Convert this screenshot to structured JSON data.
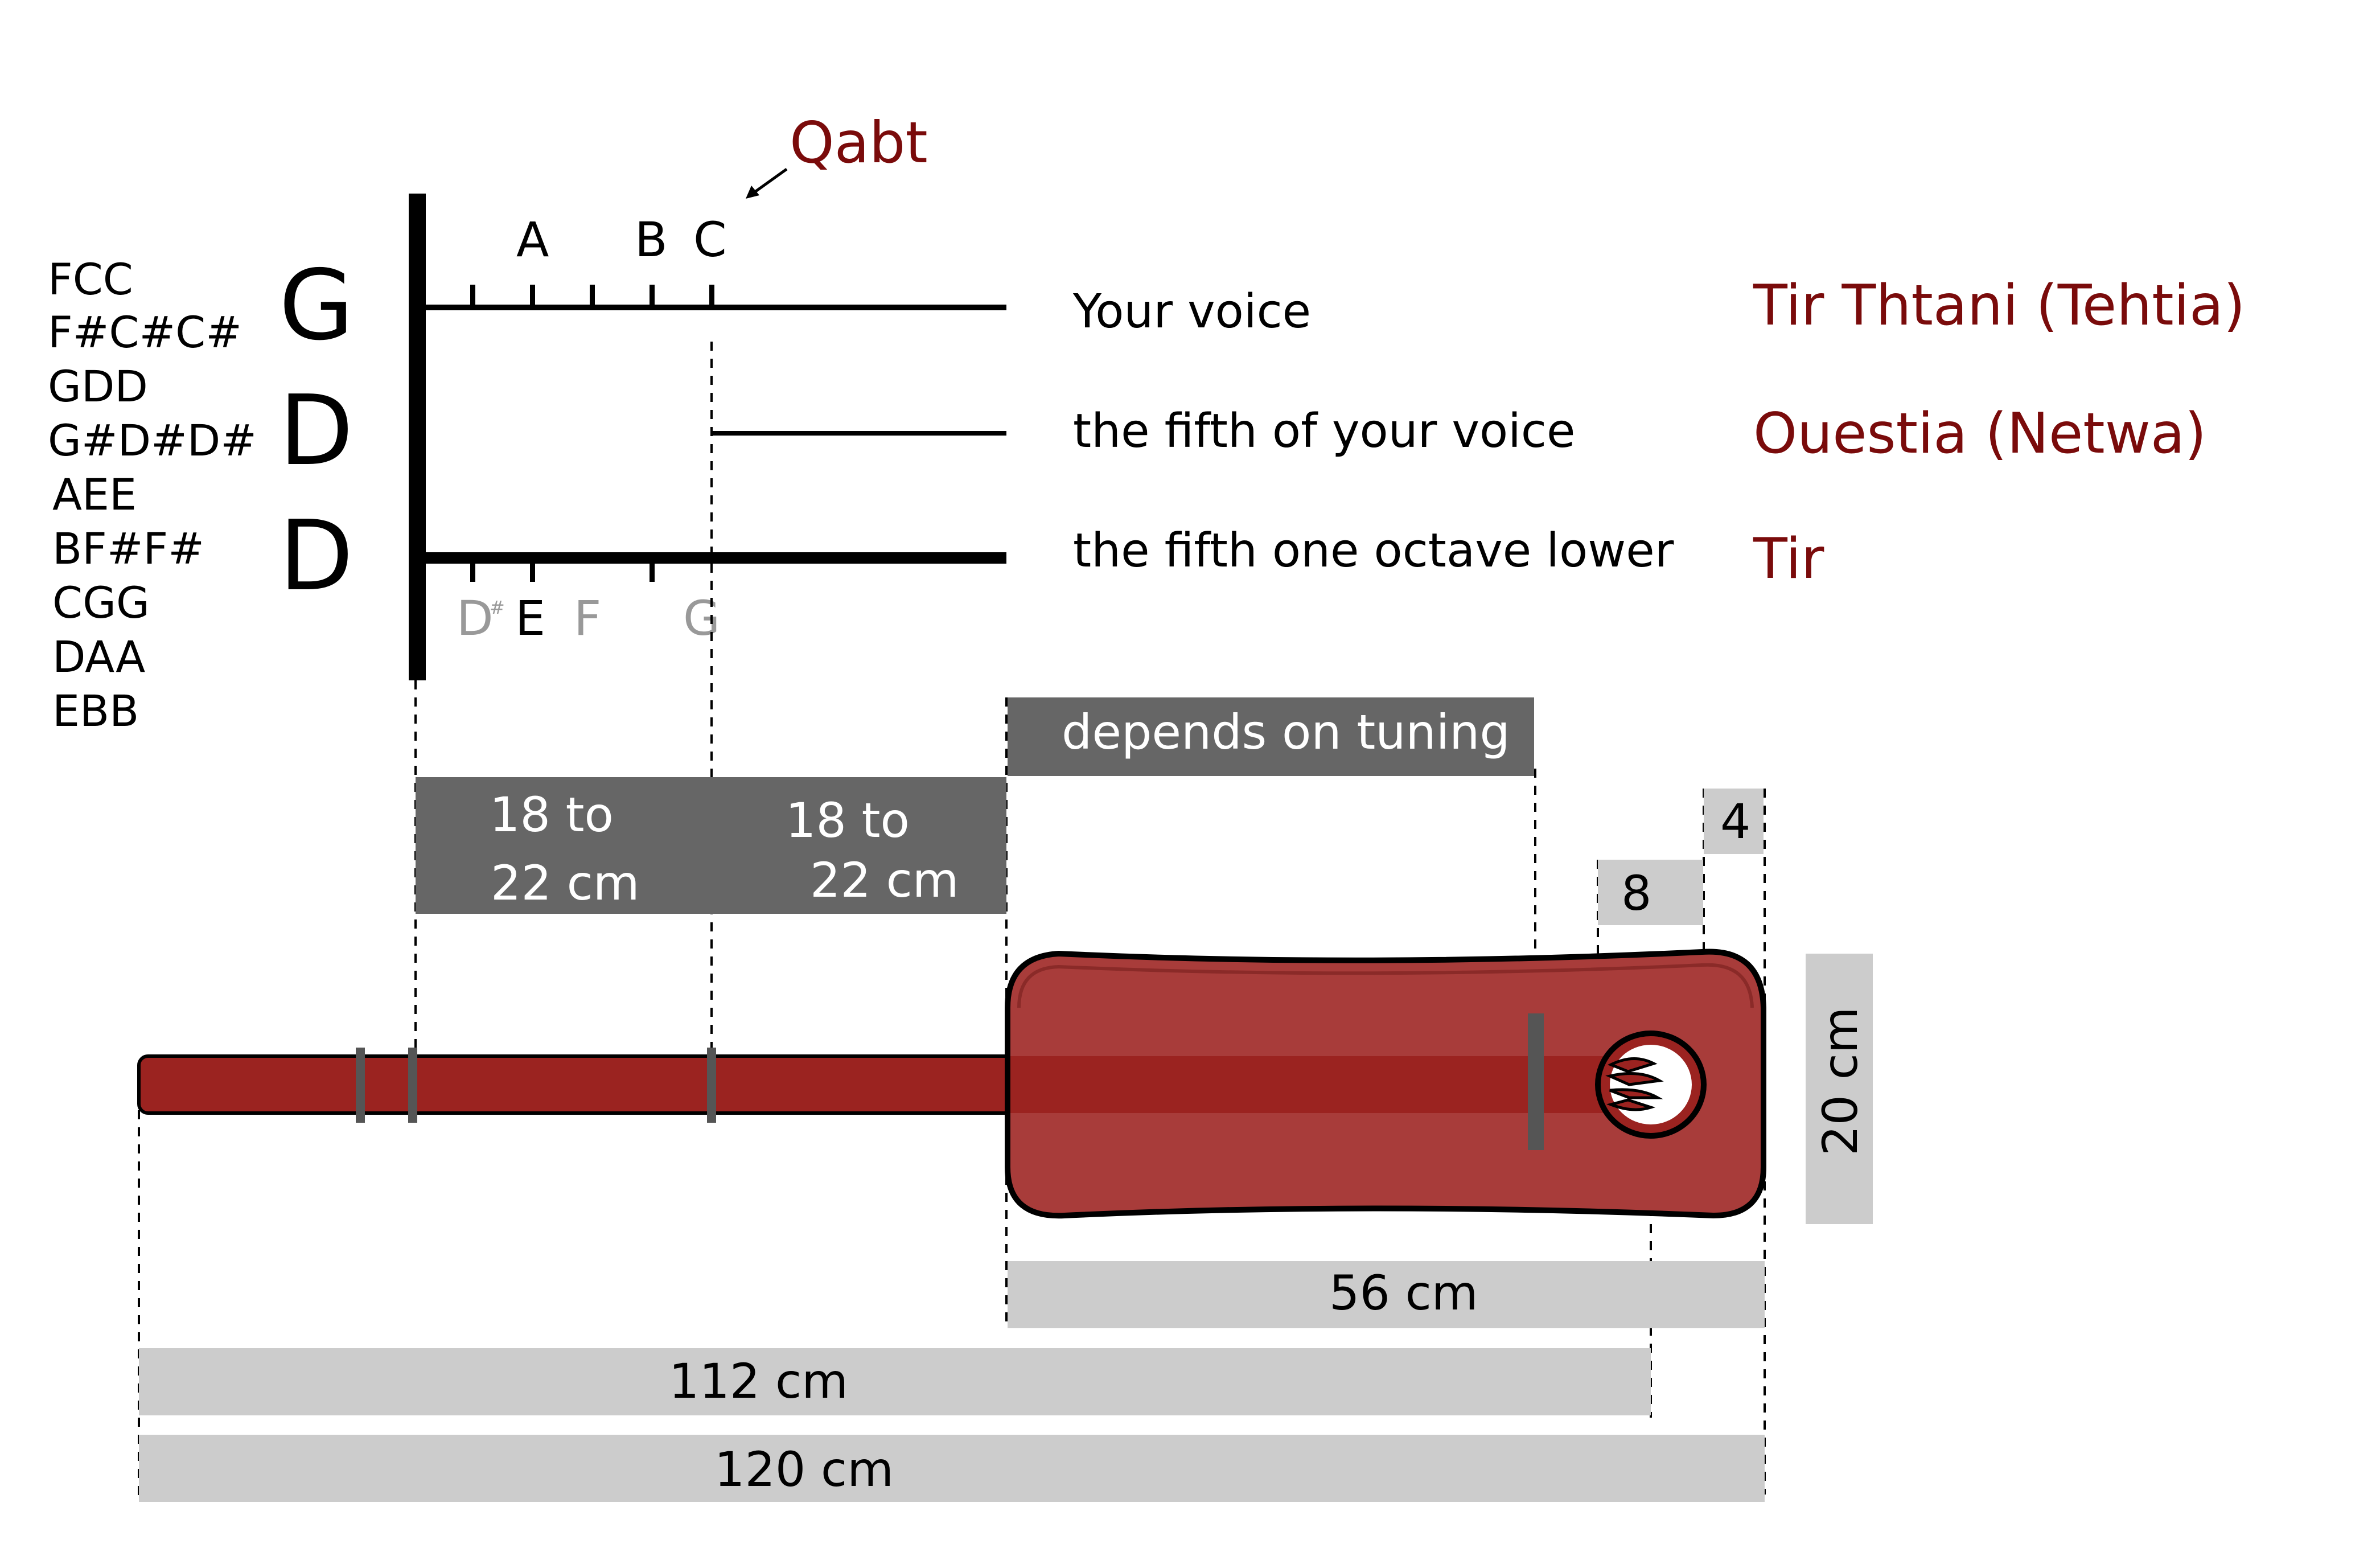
{
  "tunings": [
    "FCC",
    "F#C#C#",
    "GDD",
    "G#D#D#",
    "AEE",
    "BF#F#",
    "CGG",
    "DAA",
    "EBB"
  ],
  "string_letters": [
    "G",
    "D",
    "D"
  ],
  "qabt_label": "Qabt",
  "top_notes": [
    "A",
    "B",
    "C"
  ],
  "bottom_notes": {
    "d_sharp": "D",
    "sharp_sign": "#",
    "e": "E",
    "f": "F",
    "g": "G"
  },
  "string_descriptions": [
    "Your voice",
    "the fifth of your voice",
    "the fifth one octave lower"
  ],
  "string_names": [
    "Tir Thtani (Tehtia)",
    "Ouestia (Netwa)",
    "Tir"
  ],
  "dimensions": {
    "tuning_dependent": "depends on tuning",
    "first_segment": [
      "18 to",
      "22 cm"
    ],
    "second_segment": [
      "18 to",
      "22 cm"
    ],
    "small_top": "4",
    "small_mid": "8",
    "body_width": "20 cm",
    "body_length": "56 cm",
    "string_length": "112 cm",
    "total_length": "120 cm"
  },
  "colors": {
    "instrument_red": "#9b2320",
    "body_red": "#a83c3a",
    "label_red": "#7a0b0b",
    "dark_grey_box": "#666666",
    "light_grey_box": "#cccccc"
  }
}
